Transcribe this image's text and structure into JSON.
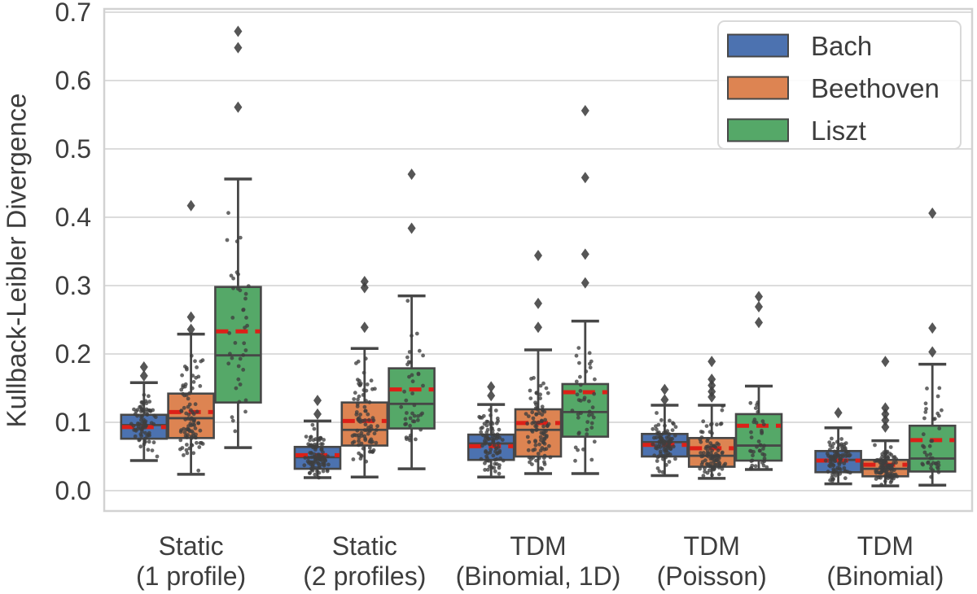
{
  "figure": {
    "description": "Grouped box plots with overlaid strip points comparing Kullback-Leibler divergence of five models for three composers"
  },
  "chart_data": {
    "type": "boxplot",
    "title": "",
    "xlabel": "",
    "ylabel": "Kullback-Leibler Divergence",
    "ylim": [
      -0.03,
      0.705
    ],
    "yticks": [
      0.0,
      0.1,
      0.2,
      0.3,
      0.4,
      0.5,
      0.6,
      0.7
    ],
    "grid": "horizontal",
    "legend_position": "upper-right",
    "strip_overlay": true,
    "mean_line": {
      "style": "dashed",
      "color": "#dc2018"
    },
    "style": {
      "box_edge_color": "#474747",
      "point_color": "#3f3f3f",
      "grid_color": "#dcdcdc",
      "frame_color": "#d2d2d2",
      "text_color": "#3d3d3d",
      "background": "#ffffff"
    },
    "categories": [
      [
        "Static",
        "(1 profile)"
      ],
      [
        "Static",
        "(2 profiles)"
      ],
      [
        "TDM",
        "(Binomial, 1D)"
      ],
      [
        "TDM",
        "(Poisson)"
      ],
      [
        "TDM",
        "(Binomial)"
      ]
    ],
    "series": [
      {
        "name": "Bach",
        "color": "#4c72b0",
        "boxes": [
          {
            "whisker_low": 0.044,
            "q1": 0.076,
            "median": 0.096,
            "mean": 0.093,
            "q3": 0.111,
            "whisker_high": 0.158,
            "outliers": [
              0.168,
              0.181
            ],
            "n_points": 80
          },
          {
            "whisker_low": 0.019,
            "q1": 0.032,
            "median": 0.049,
            "mean": 0.052,
            "q3": 0.064,
            "whisker_high": 0.102,
            "outliers": [
              0.112,
              0.132
            ],
            "n_points": 95
          },
          {
            "whisker_low": 0.02,
            "q1": 0.045,
            "median": 0.069,
            "mean": 0.065,
            "q3": 0.082,
            "whisker_high": 0.126,
            "outliers": [
              0.139,
              0.152
            ],
            "n_points": 90
          },
          {
            "whisker_low": 0.022,
            "q1": 0.05,
            "median": 0.071,
            "mean": 0.067,
            "q3": 0.083,
            "whisker_high": 0.125,
            "outliers": [
              0.133,
              0.148
            ],
            "n_points": 90
          },
          {
            "whisker_low": 0.01,
            "q1": 0.027,
            "median": 0.045,
            "mean": 0.044,
            "q3": 0.058,
            "whisker_high": 0.092,
            "outliers": [
              0.114
            ],
            "n_points": 90
          }
        ]
      },
      {
        "name": "Beethoven",
        "color": "#dd8452",
        "boxes": [
          {
            "whisker_low": 0.024,
            "q1": 0.077,
            "median": 0.106,
            "mean": 0.115,
            "q3": 0.142,
            "whisker_high": 0.229,
            "outliers": [
              0.236,
              0.254,
              0.417
            ],
            "n_points": 90
          },
          {
            "whisker_low": 0.02,
            "q1": 0.066,
            "median": 0.089,
            "mean": 0.102,
            "q3": 0.129,
            "whisker_high": 0.208,
            "outliers": [
              0.239,
              0.297,
              0.306
            ],
            "n_points": 90
          },
          {
            "whisker_low": 0.025,
            "q1": 0.05,
            "median": 0.089,
            "mean": 0.099,
            "q3": 0.119,
            "whisker_high": 0.206,
            "outliers": [
              0.239,
              0.274,
              0.344
            ],
            "n_points": 90
          },
          {
            "whisker_low": 0.018,
            "q1": 0.035,
            "median": 0.051,
            "mean": 0.062,
            "q3": 0.077,
            "whisker_high": 0.125,
            "outliers": [
              0.137,
              0.145,
              0.154,
              0.163,
              0.189
            ],
            "n_points": 90
          },
          {
            "whisker_low": 0.007,
            "q1": 0.021,
            "median": 0.032,
            "mean": 0.038,
            "q3": 0.045,
            "whisker_high": 0.073,
            "outliers": [
              0.093,
              0.103,
              0.112,
              0.121,
              0.189
            ],
            "n_points": 95
          }
        ]
      },
      {
        "name": "Liszt",
        "color": "#55a868",
        "boxes": [
          {
            "whisker_low": 0.063,
            "q1": 0.129,
            "median": 0.198,
            "mean": 0.233,
            "q3": 0.298,
            "whisker_high": 0.456,
            "outliers": [
              0.561,
              0.648,
              0.672
            ],
            "n_points": 40
          },
          {
            "whisker_low": 0.032,
            "q1": 0.091,
            "median": 0.127,
            "mean": 0.148,
            "q3": 0.179,
            "whisker_high": 0.285,
            "outliers": [
              0.384,
              0.463
            ],
            "n_points": 42
          },
          {
            "whisker_low": 0.025,
            "q1": 0.079,
            "median": 0.115,
            "mean": 0.144,
            "q3": 0.156,
            "whisker_high": 0.248,
            "outliers": [
              0.304,
              0.346,
              0.458,
              0.556
            ],
            "n_points": 42
          },
          {
            "whisker_low": 0.031,
            "q1": 0.044,
            "median": 0.066,
            "mean": 0.095,
            "q3": 0.112,
            "whisker_high": 0.153,
            "outliers": [
              0.246,
              0.269,
              0.284
            ],
            "n_points": 40
          },
          {
            "whisker_low": 0.008,
            "q1": 0.028,
            "median": 0.047,
            "mean": 0.074,
            "q3": 0.095,
            "whisker_high": 0.185,
            "outliers": [
              0.203,
              0.238,
              0.406
            ],
            "n_points": 40
          }
        ]
      }
    ]
  }
}
